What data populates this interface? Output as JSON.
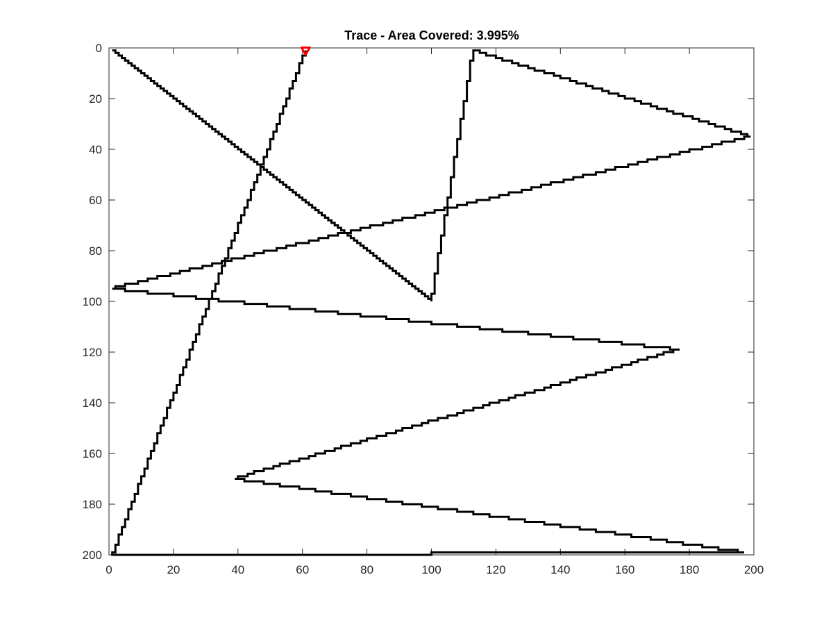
{
  "chart_data": {
    "type": "line",
    "title": "Trace - Area Covered: 3.995%",
    "xlabel": "",
    "ylabel": "",
    "xlim": [
      0,
      200
    ],
    "ylim": [
      0,
      200
    ],
    "y_reversed": true,
    "grid": false,
    "box": true,
    "x_ticks": [
      0,
      20,
      40,
      60,
      80,
      100,
      120,
      140,
      160,
      180,
      200
    ],
    "y_ticks": [
      0,
      20,
      40,
      60,
      80,
      100,
      120,
      140,
      160,
      180,
      200
    ],
    "series": [
      {
        "line_color": "#000000",
        "style": "staircase",
        "points": [
          [
            1,
            1
          ],
          [
            100,
            100
          ],
          [
            113,
            1
          ],
          [
            199,
            35
          ],
          [
            1,
            95
          ],
          [
            177,
            119
          ],
          [
            39,
            170
          ],
          [
            197,
            199
          ],
          [
            100,
            199
          ],
          [
            100,
            200
          ],
          [
            1,
            200
          ],
          [
            61,
            1
          ]
        ]
      }
    ],
    "markers": [
      {
        "shape": "triangle-down",
        "color": "#ff0000",
        "x": 61,
        "y": 1
      }
    ]
  }
}
